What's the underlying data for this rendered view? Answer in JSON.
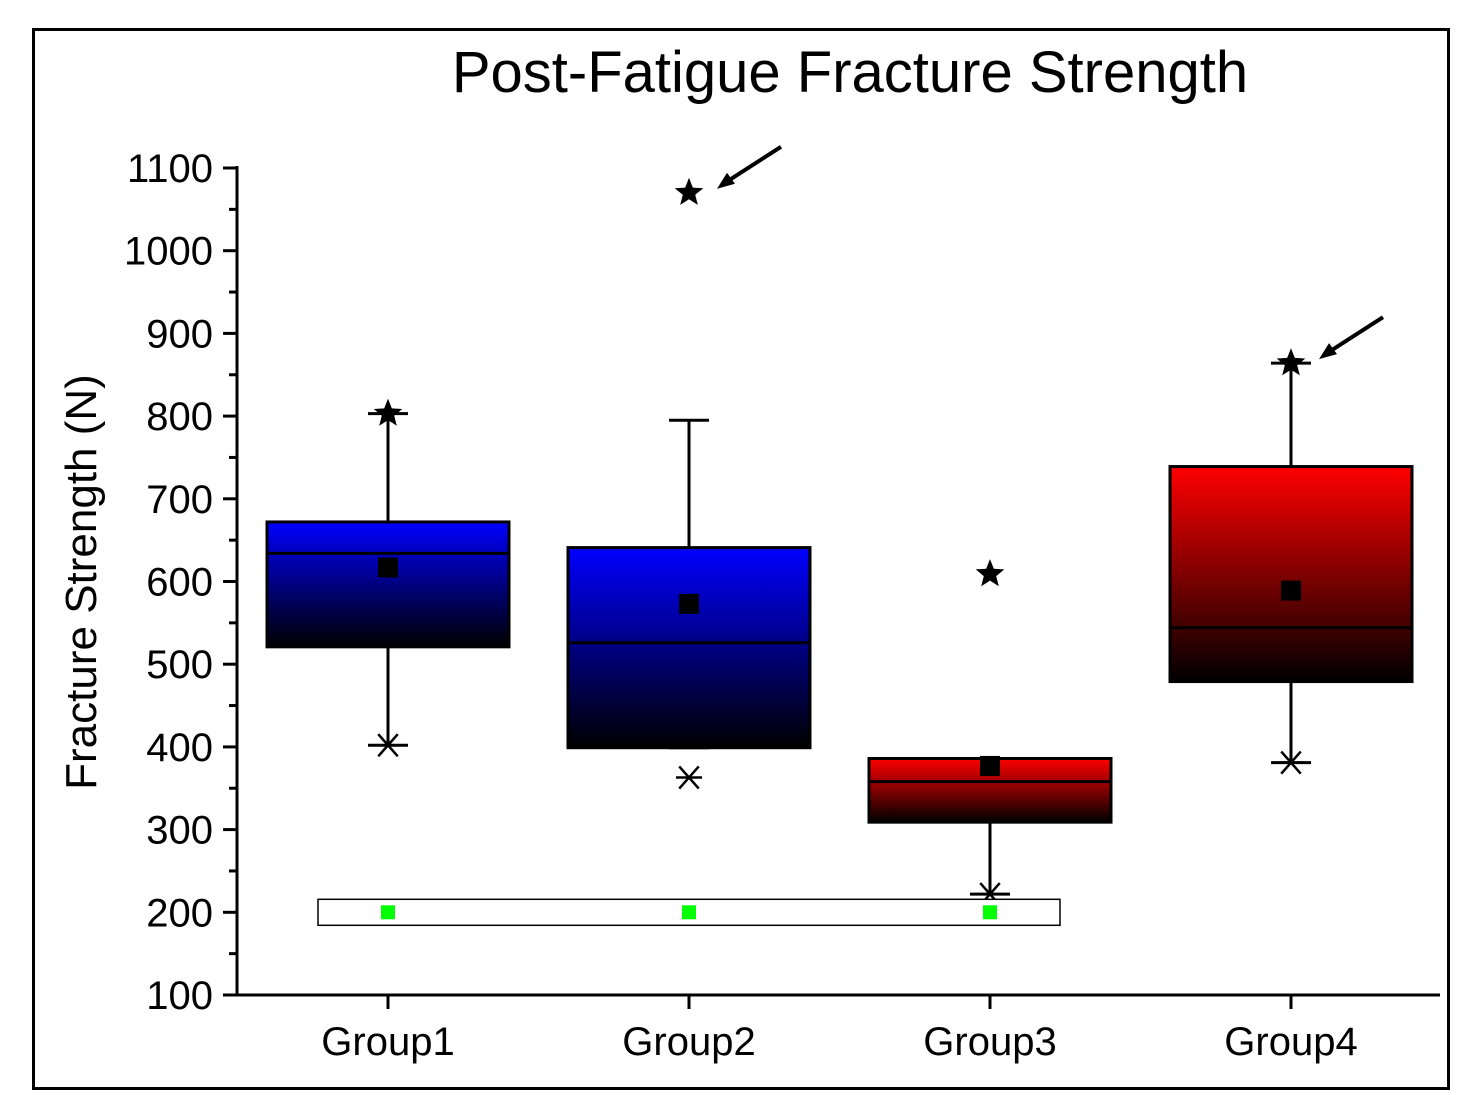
{
  "chart_data": {
    "type": "box",
    "title": "Post-Fatigue Fracture Strength",
    "xlabel": "",
    "ylabel": "Fracture Strength (N)",
    "ylim": [
      100,
      1100
    ],
    "yticks": [
      100,
      200,
      300,
      400,
      500,
      600,
      700,
      800,
      900,
      1000,
      1100
    ],
    "grid": false,
    "categories": [
      "Group1",
      "Group2",
      "Group3",
      "Group4"
    ],
    "boxes": [
      {
        "category": "Group1",
        "color": "#0000ff",
        "q1": 521,
        "median": 634,
        "q3": 672,
        "whisker_low": 402,
        "whisker_high": 803,
        "mean": 617,
        "min": 402,
        "max": 803,
        "flagged_max": false
      },
      {
        "category": "Group2",
        "color": "#0000ff",
        "q1": 399,
        "median": 526,
        "q3": 641,
        "whisker_low": 399,
        "whisker_high": 795,
        "mean": 573,
        "min": 363,
        "max": 1070,
        "flagged_max": true
      },
      {
        "category": "Group3",
        "color": "#ff0000",
        "q1": 309,
        "median": 358,
        "q3": 386,
        "whisker_low": 222,
        "whisker_high": 386,
        "mean": 377,
        "min": 222,
        "max": 609,
        "flagged_max": false
      },
      {
        "category": "Group4",
        "color": "#ff0000",
        "q1": 479,
        "median": 544,
        "q3": 739,
        "whisker_low": 381,
        "whisker_high": 864,
        "mean": 589,
        "min": 381,
        "max": 864,
        "flagged_max": true
      }
    ],
    "extra_markers": {
      "value": 200,
      "color": "#00ff00",
      "categories": [
        "Group1",
        "Group2",
        "Group3"
      ]
    }
  }
}
